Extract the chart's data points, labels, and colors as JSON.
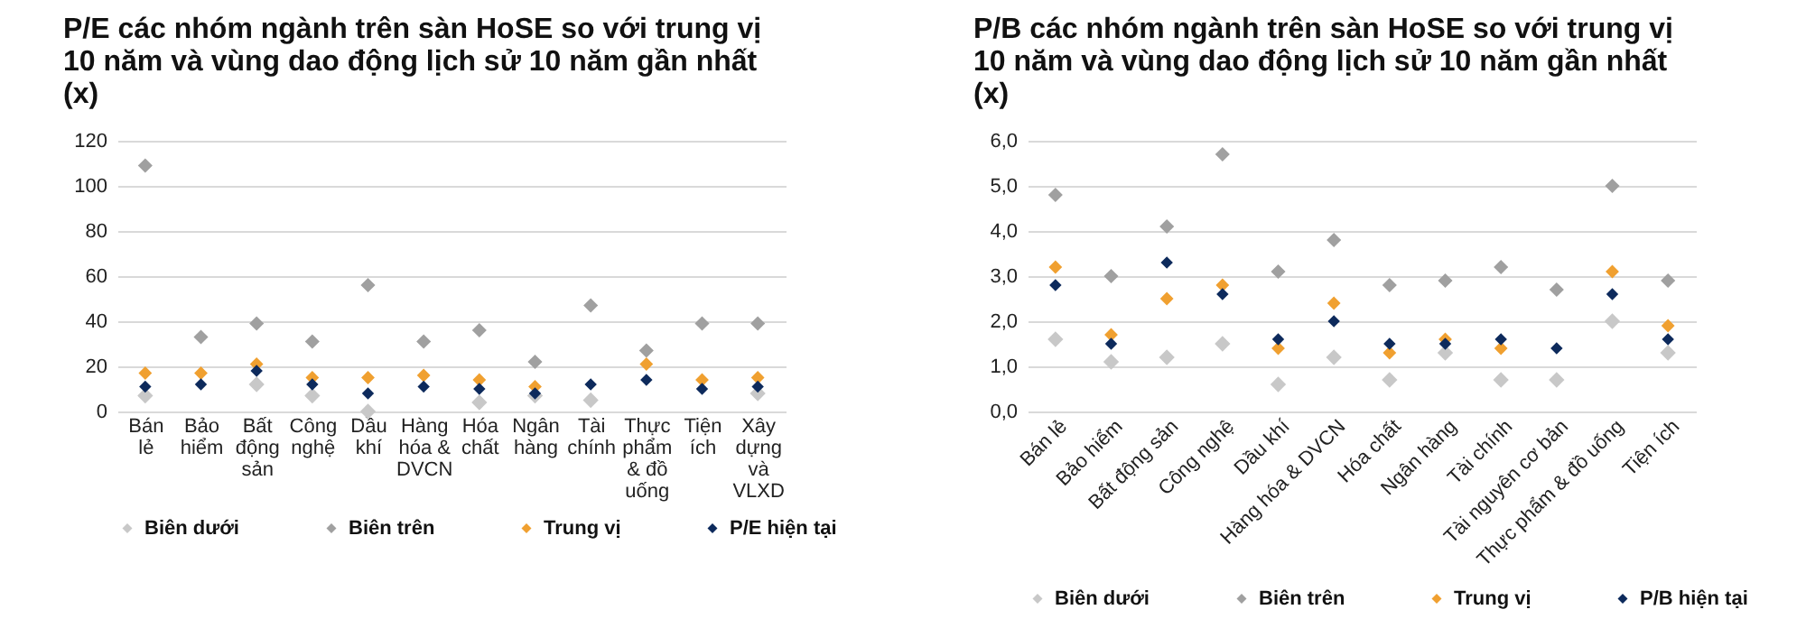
{
  "chart_data": [
    {
      "type": "scatter",
      "title": "P/E các nhóm ngành trên sàn HoSE so với trung vị 10 năm và vùng dao động lịch sử 10 năm gần nhất (x)",
      "categories": [
        "Bán lẻ",
        "Bảo hiểm",
        "Bất động sản",
        "Công nghệ",
        "Dầu khí",
        "Hàng hóa & DVCN",
        "Hóa chất",
        "Ngân hàng",
        "Tài chính",
        "Thực phẩm & đồ uống",
        "Tiện ích",
        "Xây dựng và VLXD"
      ],
      "series": [
        {
          "name": "Biên dưới",
          "color": "#c8c8c8",
          "values": [
            7,
            null,
            12,
            7,
            0,
            null,
            4,
            7,
            5,
            null,
            null,
            8
          ]
        },
        {
          "name": "Biên trên",
          "color": "#a0a0a0",
          "values": [
            109,
            33,
            39,
            31,
            56,
            31,
            36,
            22,
            47,
            27,
            39,
            39
          ]
        },
        {
          "name": "Trung vị",
          "color": "#f0a030",
          "values": [
            17,
            17,
            21,
            15,
            15,
            16,
            14,
            11,
            null,
            21,
            14,
            15
          ]
        },
        {
          "name": "P/E hiện tại",
          "color": "#0d2a5c",
          "values": [
            11,
            12,
            18,
            12,
            8,
            11,
            10,
            8,
            12,
            14,
            10,
            11
          ]
        }
      ],
      "ylim": [
        0,
        120
      ],
      "yticks": [
        0,
        20,
        40,
        60,
        80,
        100,
        120
      ],
      "grid": "y",
      "legend": "bottom",
      "marker": "diamond"
    },
    {
      "type": "scatter",
      "title": "P/B các nhóm ngành trên sàn HoSE so với trung vị 10 năm và vùng dao động lịch sử 10 năm gần nhất (x)",
      "categories": [
        "Bán lẻ",
        "Bảo hiểm",
        "Bất động sản",
        "Công nghệ",
        "Dầu khí",
        "Hàng hóa & DVCN",
        "Hóa chất",
        "Ngân hàng",
        "Tài chính",
        "Tài nguyên cơ bản",
        "Thực phẩm & đồ uống",
        "Tiện ích"
      ],
      "series": [
        {
          "name": "Biên dưới",
          "color": "#c8c8c8",
          "values": [
            1.6,
            1.1,
            1.2,
            1.5,
            0.6,
            1.2,
            0.7,
            1.3,
            0.7,
            0.7,
            2.0,
            1.3
          ]
        },
        {
          "name": "Biên trên",
          "color": "#a0a0a0",
          "values": [
            4.8,
            3.0,
            4.1,
            5.7,
            3.1,
            3.8,
            2.8,
            2.9,
            3.2,
            2.7,
            5.0,
            2.9
          ]
        },
        {
          "name": "Trung vị",
          "color": "#f0a030",
          "values": [
            3.2,
            1.7,
            2.5,
            2.8,
            1.4,
            2.4,
            1.3,
            1.6,
            1.4,
            null,
            3.1,
            1.9
          ]
        },
        {
          "name": "P/B hiện tại",
          "color": "#0d2a5c",
          "values": [
            2.8,
            1.5,
            3.3,
            2.6,
            1.6,
            2.0,
            1.5,
            1.5,
            1.6,
            1.4,
            2.6,
            1.6
          ]
        }
      ],
      "ylim": [
        0,
        6
      ],
      "yticks": [
        {
          "value": 0,
          "label": "0,0"
        },
        {
          "value": 1,
          "label": "1,0"
        },
        {
          "value": 2,
          "label": "2,0"
        },
        {
          "value": 3,
          "label": "3,0"
        },
        {
          "value": 4,
          "label": "4,0"
        },
        {
          "value": 5,
          "label": "5,0"
        },
        {
          "value": 6,
          "label": "6,0"
        }
      ],
      "grid": "y",
      "legend": "bottom",
      "marker": "diamond"
    }
  ]
}
